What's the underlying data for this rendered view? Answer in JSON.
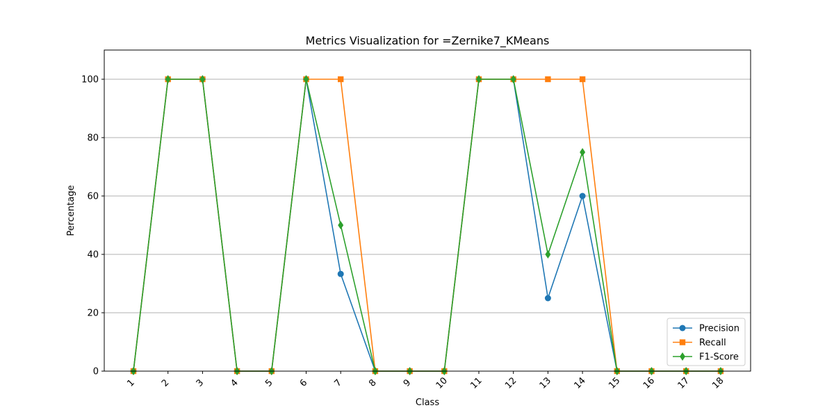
{
  "chart_data": {
    "type": "line",
    "title": "Metrics Visualization for =Zernike7_KMeans",
    "xlabel": "Class",
    "ylabel": "Percentage",
    "categories": [
      "1",
      "2",
      "3",
      "4",
      "5",
      "6",
      "7",
      "8",
      "9",
      "10",
      "11",
      "12",
      "13",
      "14",
      "15",
      "16",
      "17",
      "18"
    ],
    "ylim": [
      0,
      110
    ],
    "yticks": [
      0,
      20,
      40,
      60,
      80,
      100
    ],
    "grid": "y",
    "legend_position": "lower-right",
    "series": [
      {
        "name": "Precision",
        "color": "#1f77b4",
        "marker": "circle",
        "values": [
          0,
          100,
          100,
          0,
          0,
          100,
          33.3,
          0,
          0,
          0,
          100,
          100,
          25,
          60,
          0,
          0,
          0,
          0
        ]
      },
      {
        "name": "Recall",
        "color": "#ff7f0e",
        "marker": "square",
        "values": [
          0,
          100,
          100,
          0,
          0,
          100,
          100,
          0,
          0,
          0,
          100,
          100,
          100,
          100,
          0,
          0,
          0,
          0
        ]
      },
      {
        "name": "F1-Score",
        "color": "#2ca02c",
        "marker": "diamond",
        "values": [
          0,
          100,
          100,
          0,
          0,
          100,
          50,
          0,
          0,
          0,
          100,
          100,
          40,
          75,
          0,
          0,
          0,
          0
        ]
      }
    ]
  }
}
